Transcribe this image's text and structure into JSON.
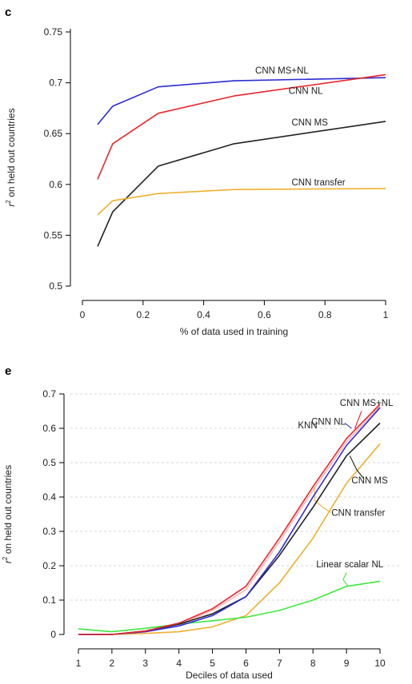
{
  "chart_data": [
    {
      "type": "line",
      "panel": "c",
      "xlabel": "% of data used in training",
      "ylabel": "on held out countries",
      "ylabel_prefix": "r",
      "ylabel_superscript": "2",
      "xlim": [
        0,
        1
      ],
      "ylim": [
        0.5,
        0.75
      ],
      "xticks": [
        0,
        0.2,
        0.4,
        0.6,
        0.8,
        1
      ],
      "xtick_labels": [
        "0",
        "0.2",
        "0.4",
        "0.6",
        "0.8",
        "1"
      ],
      "yticks": [
        0.5,
        0.55,
        0.6,
        0.65,
        0.7,
        0.75
      ],
      "ytick_labels": [
        "0.5",
        "0.55",
        "0.6",
        "0.65",
        "0.7",
        "0.75"
      ],
      "grid": false,
      "series": [
        {
          "name": "CNN MS+NL",
          "color": "#2b2bd4",
          "x": [
            0.05,
            0.1,
            0.25,
            0.5,
            1.0
          ],
          "y": [
            0.659,
            0.677,
            0.696,
            0.702,
            0.705
          ],
          "label_at": [
            0.57,
            0.709
          ]
        },
        {
          "name": "CNN NL",
          "color": "#e8262c",
          "x": [
            0.05,
            0.1,
            0.25,
            0.5,
            1.0
          ],
          "y": [
            0.605,
            0.64,
            0.67,
            0.687,
            0.708
          ],
          "label_at": [
            0.68,
            0.689
          ]
        },
        {
          "name": "CNN MS",
          "color": "#222222",
          "x": [
            0.05,
            0.1,
            0.25,
            0.5,
            1.0
          ],
          "y": [
            0.539,
            0.573,
            0.618,
            0.64,
            0.662
          ],
          "label_at": [
            0.69,
            0.658
          ]
        },
        {
          "name": "CNN transfer",
          "color": "#f0b030",
          "x": [
            0.05,
            0.1,
            0.25,
            0.5,
            1.0
          ],
          "y": [
            0.57,
            0.584,
            0.591,
            0.595,
            0.596
          ],
          "label_at": [
            0.69,
            0.599
          ]
        }
      ]
    },
    {
      "type": "line",
      "panel": "e",
      "xlabel": "Deciles of data used",
      "ylabel": "on held out countries",
      "ylabel_prefix": "r",
      "ylabel_superscript": "2",
      "xlim": [
        1,
        10
      ],
      "ylim": [
        0,
        0.7
      ],
      "xticks": [
        1,
        2,
        3,
        4,
        5,
        6,
        7,
        8,
        9,
        10
      ],
      "xtick_labels": [
        "1",
        "2",
        "3",
        "4",
        "5",
        "6",
        "7",
        "8",
        "9",
        "10"
      ],
      "yticks": [
        0,
        0.1,
        0.2,
        0.3,
        0.4,
        0.5,
        0.6,
        0.7
      ],
      "ytick_labels": [
        "0",
        "0.1",
        "0.2",
        "0.3",
        "0.4",
        "0.5",
        "0.6",
        "0.7"
      ],
      "grid": true,
      "series": [
        {
          "name": "KNN",
          "color": "#f2b8b8",
          "x": [
            1,
            2,
            3,
            4,
            5,
            6,
            7,
            8,
            9,
            10
          ],
          "y": [
            0,
            0,
            0.01,
            0.03,
            0.07,
            0.13,
            0.27,
            0.42,
            0.56,
            0.665
          ],
          "label_at": [
            7.55,
            0.6
          ]
        },
        {
          "name": "CNN transfer",
          "color": "#f0b030",
          "x": [
            1,
            2,
            3,
            4,
            5,
            6,
            7,
            8,
            9,
            10
          ],
          "y": [
            0,
            0,
            0.003,
            0.008,
            0.022,
            0.055,
            0.15,
            0.28,
            0.44,
            0.555
          ],
          "label_at": [
            8.55,
            0.345
          ],
          "pointer": [
            [
              8.53,
              0.355
            ],
            [
              8.3,
              0.37
            ],
            [
              8.05,
              0.39
            ],
            [
              8.05,
              0.43
            ]
          ]
        },
        {
          "name": "Linear scalar NL",
          "color": "#3ee83e",
          "x": [
            1,
            2,
            3,
            4,
            5,
            6,
            7,
            8,
            9,
            10
          ],
          "y": [
            0.016,
            0.008,
            0.018,
            0.03,
            0.04,
            0.05,
            0.07,
            0.1,
            0.14,
            0.155
          ],
          "label_at": [
            8.1,
            0.195
          ],
          "pointer": [
            [
              9.0,
              0.18
            ],
            [
              8.9,
              0.16
            ],
            [
              9.05,
              0.14
            ]
          ]
        },
        {
          "name": "CNN MS",
          "color": "#222222",
          "x": [
            1,
            2,
            3,
            4,
            5,
            6,
            7,
            8,
            9,
            10
          ],
          "y": [
            0,
            0,
            0.01,
            0.03,
            0.06,
            0.11,
            0.23,
            0.37,
            0.52,
            0.615
          ],
          "label_at": [
            9.15,
            0.44
          ],
          "pointer": [
            [
              9.5,
              0.455
            ],
            [
              9.3,
              0.48
            ],
            [
              9.1,
              0.52
            ]
          ]
        },
        {
          "name": "CNN NL",
          "color": "#2b2bd4",
          "x": [
            1,
            2,
            3,
            4,
            5,
            6,
            7,
            8,
            9,
            10
          ],
          "y": [
            0,
            0,
            0.008,
            0.025,
            0.055,
            0.11,
            0.24,
            0.4,
            0.55,
            0.66
          ],
          "label_at": [
            7.95,
            0.61
          ],
          "pointer": [
            [
              8.95,
              0.615
            ],
            [
              9.15,
              0.6
            ]
          ]
        },
        {
          "name": "CNN MS+NL",
          "color": "#e8262c",
          "x": [
            1,
            2,
            3,
            4,
            5,
            6,
            7,
            8,
            9,
            10
          ],
          "y": [
            0,
            0,
            0.01,
            0.033,
            0.075,
            0.14,
            0.28,
            0.43,
            0.57,
            0.67
          ],
          "label_at": [
            8.8,
            0.665
          ],
          "pointer": [
            [
              9.45,
              0.65
            ],
            [
              9.25,
              0.6
            ]
          ]
        }
      ]
    }
  ]
}
